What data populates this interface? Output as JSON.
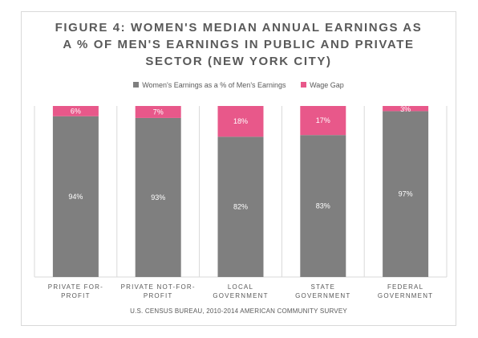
{
  "chart_data": {
    "type": "bar",
    "stacked": true,
    "title": "FIGURE 4: WOMEN'S MEDIAN ANNUAL EARNINGS AS A % OF MEN'S EARNINGS IN PUBLIC AND PRIVATE SECTOR (NEW YORK CITY)",
    "title_lines": [
      "FIGURE 4: WOMEN'S MEDIAN ANNUAL EARNINGS AS",
      "A % OF MEN'S EARNINGS IN PUBLIC AND PRIVATE",
      "SECTOR (NEW YORK CITY)"
    ],
    "categories": [
      "PRIVATE FOR-PROFIT",
      "PRIVATE NOT-FOR-PROFIT",
      "LOCAL GOVERNMENT",
      "STATE GOVERNMENT",
      "FEDERAL GOVERNMENT"
    ],
    "category_lines": [
      [
        "PRIVATE FOR-",
        "PROFIT"
      ],
      [
        "PRIVATE NOT-FOR-",
        "PROFIT"
      ],
      [
        "LOCAL",
        "GOVERNMENT"
      ],
      [
        "STATE",
        "GOVERNMENT"
      ],
      [
        "FEDERAL",
        "GOVERNMENT"
      ]
    ],
    "series": [
      {
        "name": "Women's Earnings as a % of Men's Earnings",
        "values": [
          94,
          93,
          82,
          83,
          97
        ],
        "labels": [
          "94%",
          "93%",
          "82%",
          "83%",
          "97%"
        ],
        "color": "#7f7f7f"
      },
      {
        "name": "Wage Gap",
        "values": [
          6,
          7,
          18,
          17,
          3
        ],
        "labels": [
          "6%",
          "7%",
          "18%",
          "17%",
          "3%"
        ],
        "color": "#e8588a"
      }
    ],
    "ylim": [
      0,
      100
    ],
    "grid": false,
    "legend_position": "top",
    "xlabel": "",
    "ylabel": "",
    "source": "U.S. CENSUS BUREAU, 2010-2014 AMERICAN COMMUNITY SURVEY"
  },
  "colors": {
    "women_bar": "#7f7f7f",
    "gap_bar": "#e8588a",
    "text": "#595959",
    "divider": "#d9d9d9"
  }
}
